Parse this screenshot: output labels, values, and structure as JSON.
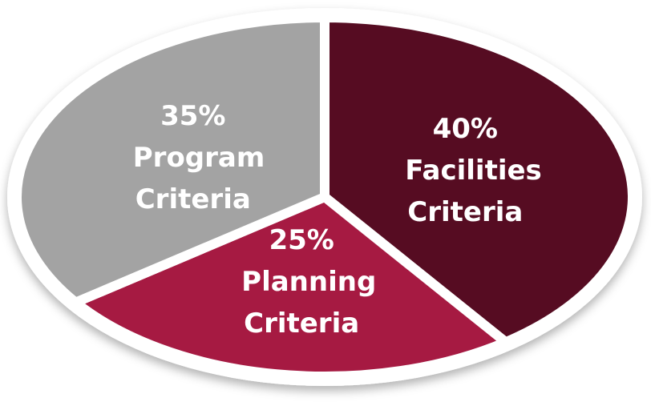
{
  "chart_data": {
    "type": "pie",
    "categories": [
      "Facilities Criteria",
      "Planning Criteria",
      "Program Criteria"
    ],
    "values": [
      40,
      25,
      35
    ],
    "value_labels": [
      "40%",
      "25%",
      "35%"
    ],
    "colors": [
      "#560c22",
      "#a61a42",
      "#a3a3a3"
    ]
  }
}
